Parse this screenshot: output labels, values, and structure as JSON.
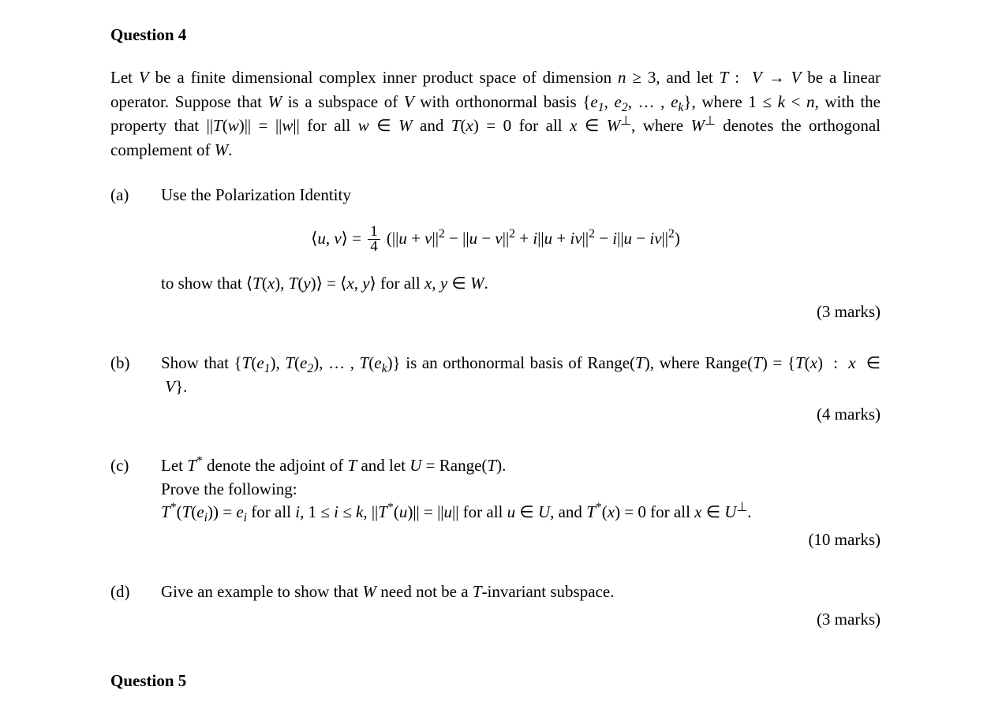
{
  "q4": {
    "title": "Question 4",
    "intro_prefix": "Let ",
    "intro_middle1": " be a finite dimensional complex inner product space of dimension ",
    "intro_middle2": ", and let ",
    "intro_middle3": " be a linear operator. Suppose that ",
    "intro_middle4": " is a subspace of ",
    "intro_middle5": " with orthonormal basis ",
    "intro_middle6": ", where ",
    "intro_middle7": ", with the property that ",
    "intro_middle8": " for all ",
    "intro_middle9": " and ",
    "intro_middle10": " for all ",
    "intro_middle11": ", where ",
    "intro_middle12": " denotes the orthogonal complement of ",
    "intro_end": ".",
    "a": {
      "label": "(a)",
      "text1": "Use the Polarization Identity",
      "text2_prefix": "to show that ",
      "text2_middle": " for all ",
      "text2_end": ".",
      "marks": "(3 marks)"
    },
    "b": {
      "label": "(b)",
      "text_prefix": "Show that ",
      "text_middle1": " is an orthonormal basis of ",
      "text_middle2": ", where ",
      "text_end": ".",
      "marks": "(4 marks)"
    },
    "c": {
      "label": "(c)",
      "line1_prefix": "Let ",
      "line1_middle1": " denote the adjoint of ",
      "line1_middle2": " and let ",
      "line1_end": ".",
      "line2": "Prove the following:",
      "line3_t1": " for all ",
      "line3_t2": ", ",
      "line3_t3": " for all ",
      "line3_t4": ", and ",
      "line3_t5": " for all ",
      "line3_end": ".",
      "marks": "(10 marks)"
    },
    "d": {
      "label": "(d)",
      "text_prefix": "Give an example to show that ",
      "text_middle": " need not be a ",
      "text_end": "-invariant subspace.",
      "marks": "(3 marks)"
    }
  },
  "q5": {
    "title": "Question 5"
  }
}
